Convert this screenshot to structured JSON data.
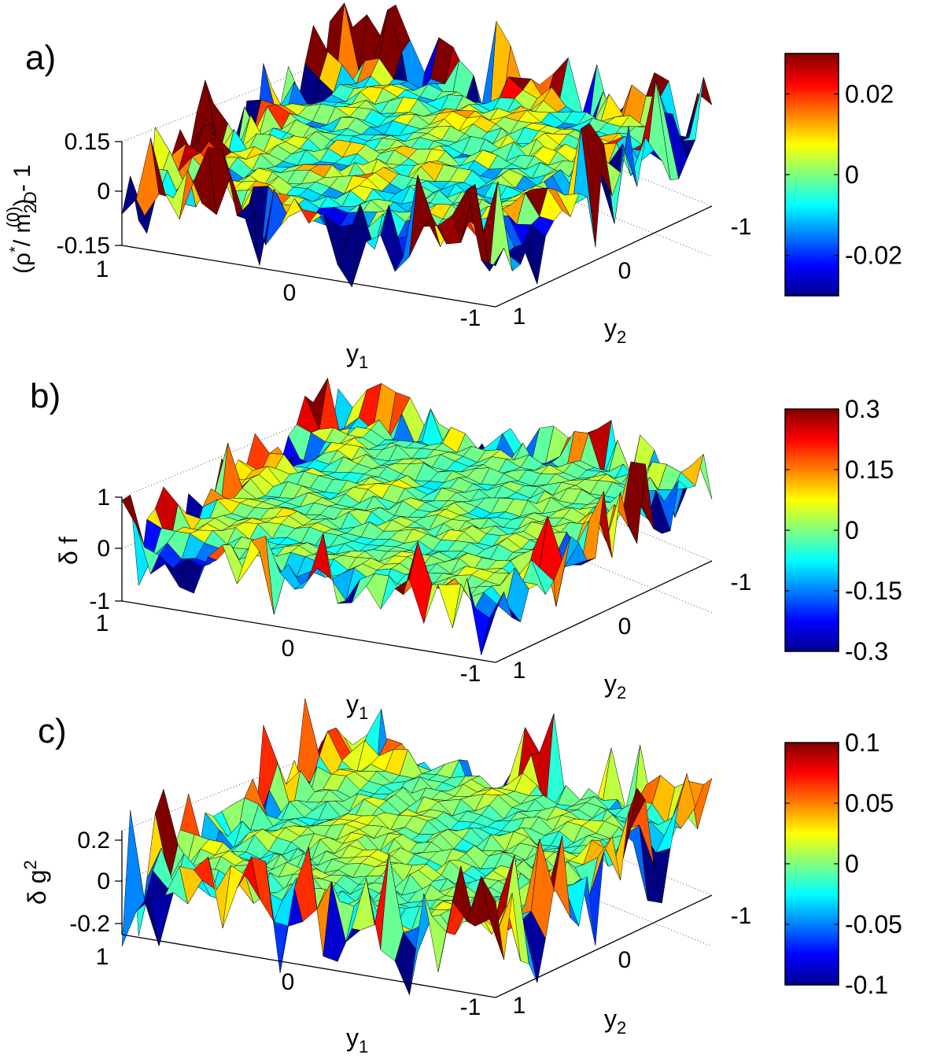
{
  "chart_data": [
    {
      "type": "surface",
      "panel_label": "a)",
      "zlabel_parts": {
        "open": "(ρ",
        "sup_star": "*",
        "slash": "/ m",
        "sub": "2D",
        "sup0": "(0)",
        "close": ") - 1"
      },
      "xlabel": {
        "base": "y",
        "sub": "1"
      },
      "ylabel": {
        "base": "y",
        "sub": "2"
      },
      "x_ticks": [
        "1",
        "0",
        "-1"
      ],
      "y_ticks": [
        "1",
        "0",
        "-1"
      ],
      "z_ticks": [
        "0.15",
        "0",
        "-0.15"
      ],
      "zlim": [
        -0.15,
        0.15
      ],
      "grid": true,
      "colorbar": {
        "range": [
          -0.03,
          0.03
        ],
        "ticks": [
          "0.02",
          "0",
          "-0.02"
        ],
        "tick_values": [
          0.02,
          0,
          -0.02
        ]
      },
      "noise_amplitude": 0.04,
      "seed": 7
    },
    {
      "type": "surface",
      "panel_label": "b)",
      "zlabel": "δ f",
      "xlabel": {
        "base": "y",
        "sub": "1"
      },
      "ylabel": {
        "base": "y",
        "sub": "2"
      },
      "x_ticks": [
        "1",
        "0",
        "-1"
      ],
      "y_ticks": [
        "1",
        "0",
        "-1"
      ],
      "z_ticks": [
        "1",
        "0",
        "-1"
      ],
      "zlim": [
        -1,
        1
      ],
      "grid": true,
      "colorbar": {
        "range": [
          -0.3,
          0.3
        ],
        "ticks": [
          "0.3",
          "0.15",
          "0",
          "-0.15",
          "-0.3"
        ],
        "tick_values": [
          0.3,
          0.15,
          0,
          -0.15,
          -0.3
        ]
      },
      "noise_amplitude": 0.22,
      "seed": 19
    },
    {
      "type": "surface",
      "panel_label": "c)",
      "zlabel": {
        "base": "δ g",
        "sup": "2"
      },
      "xlabel": {
        "base": "y",
        "sub": "1"
      },
      "ylabel": {
        "base": "y",
        "sub": "2"
      },
      "x_ticks": [
        "1",
        "0",
        "-1"
      ],
      "y_ticks": [
        "1",
        "0",
        "-1"
      ],
      "z_ticks": [
        "0.2",
        "0",
        "-0.2"
      ],
      "zlim": [
        -0.2,
        0.2
      ],
      "grid": true,
      "colorbar": {
        "range": [
          -0.1,
          0.1
        ],
        "ticks": [
          "0.1",
          "0.05",
          "0",
          "-0.05",
          "-0.1"
        ],
        "tick_values": [
          0.1,
          0.05,
          0,
          -0.05,
          -0.1
        ]
      },
      "noise_amplitude": 0.06,
      "seed": 31
    }
  ]
}
